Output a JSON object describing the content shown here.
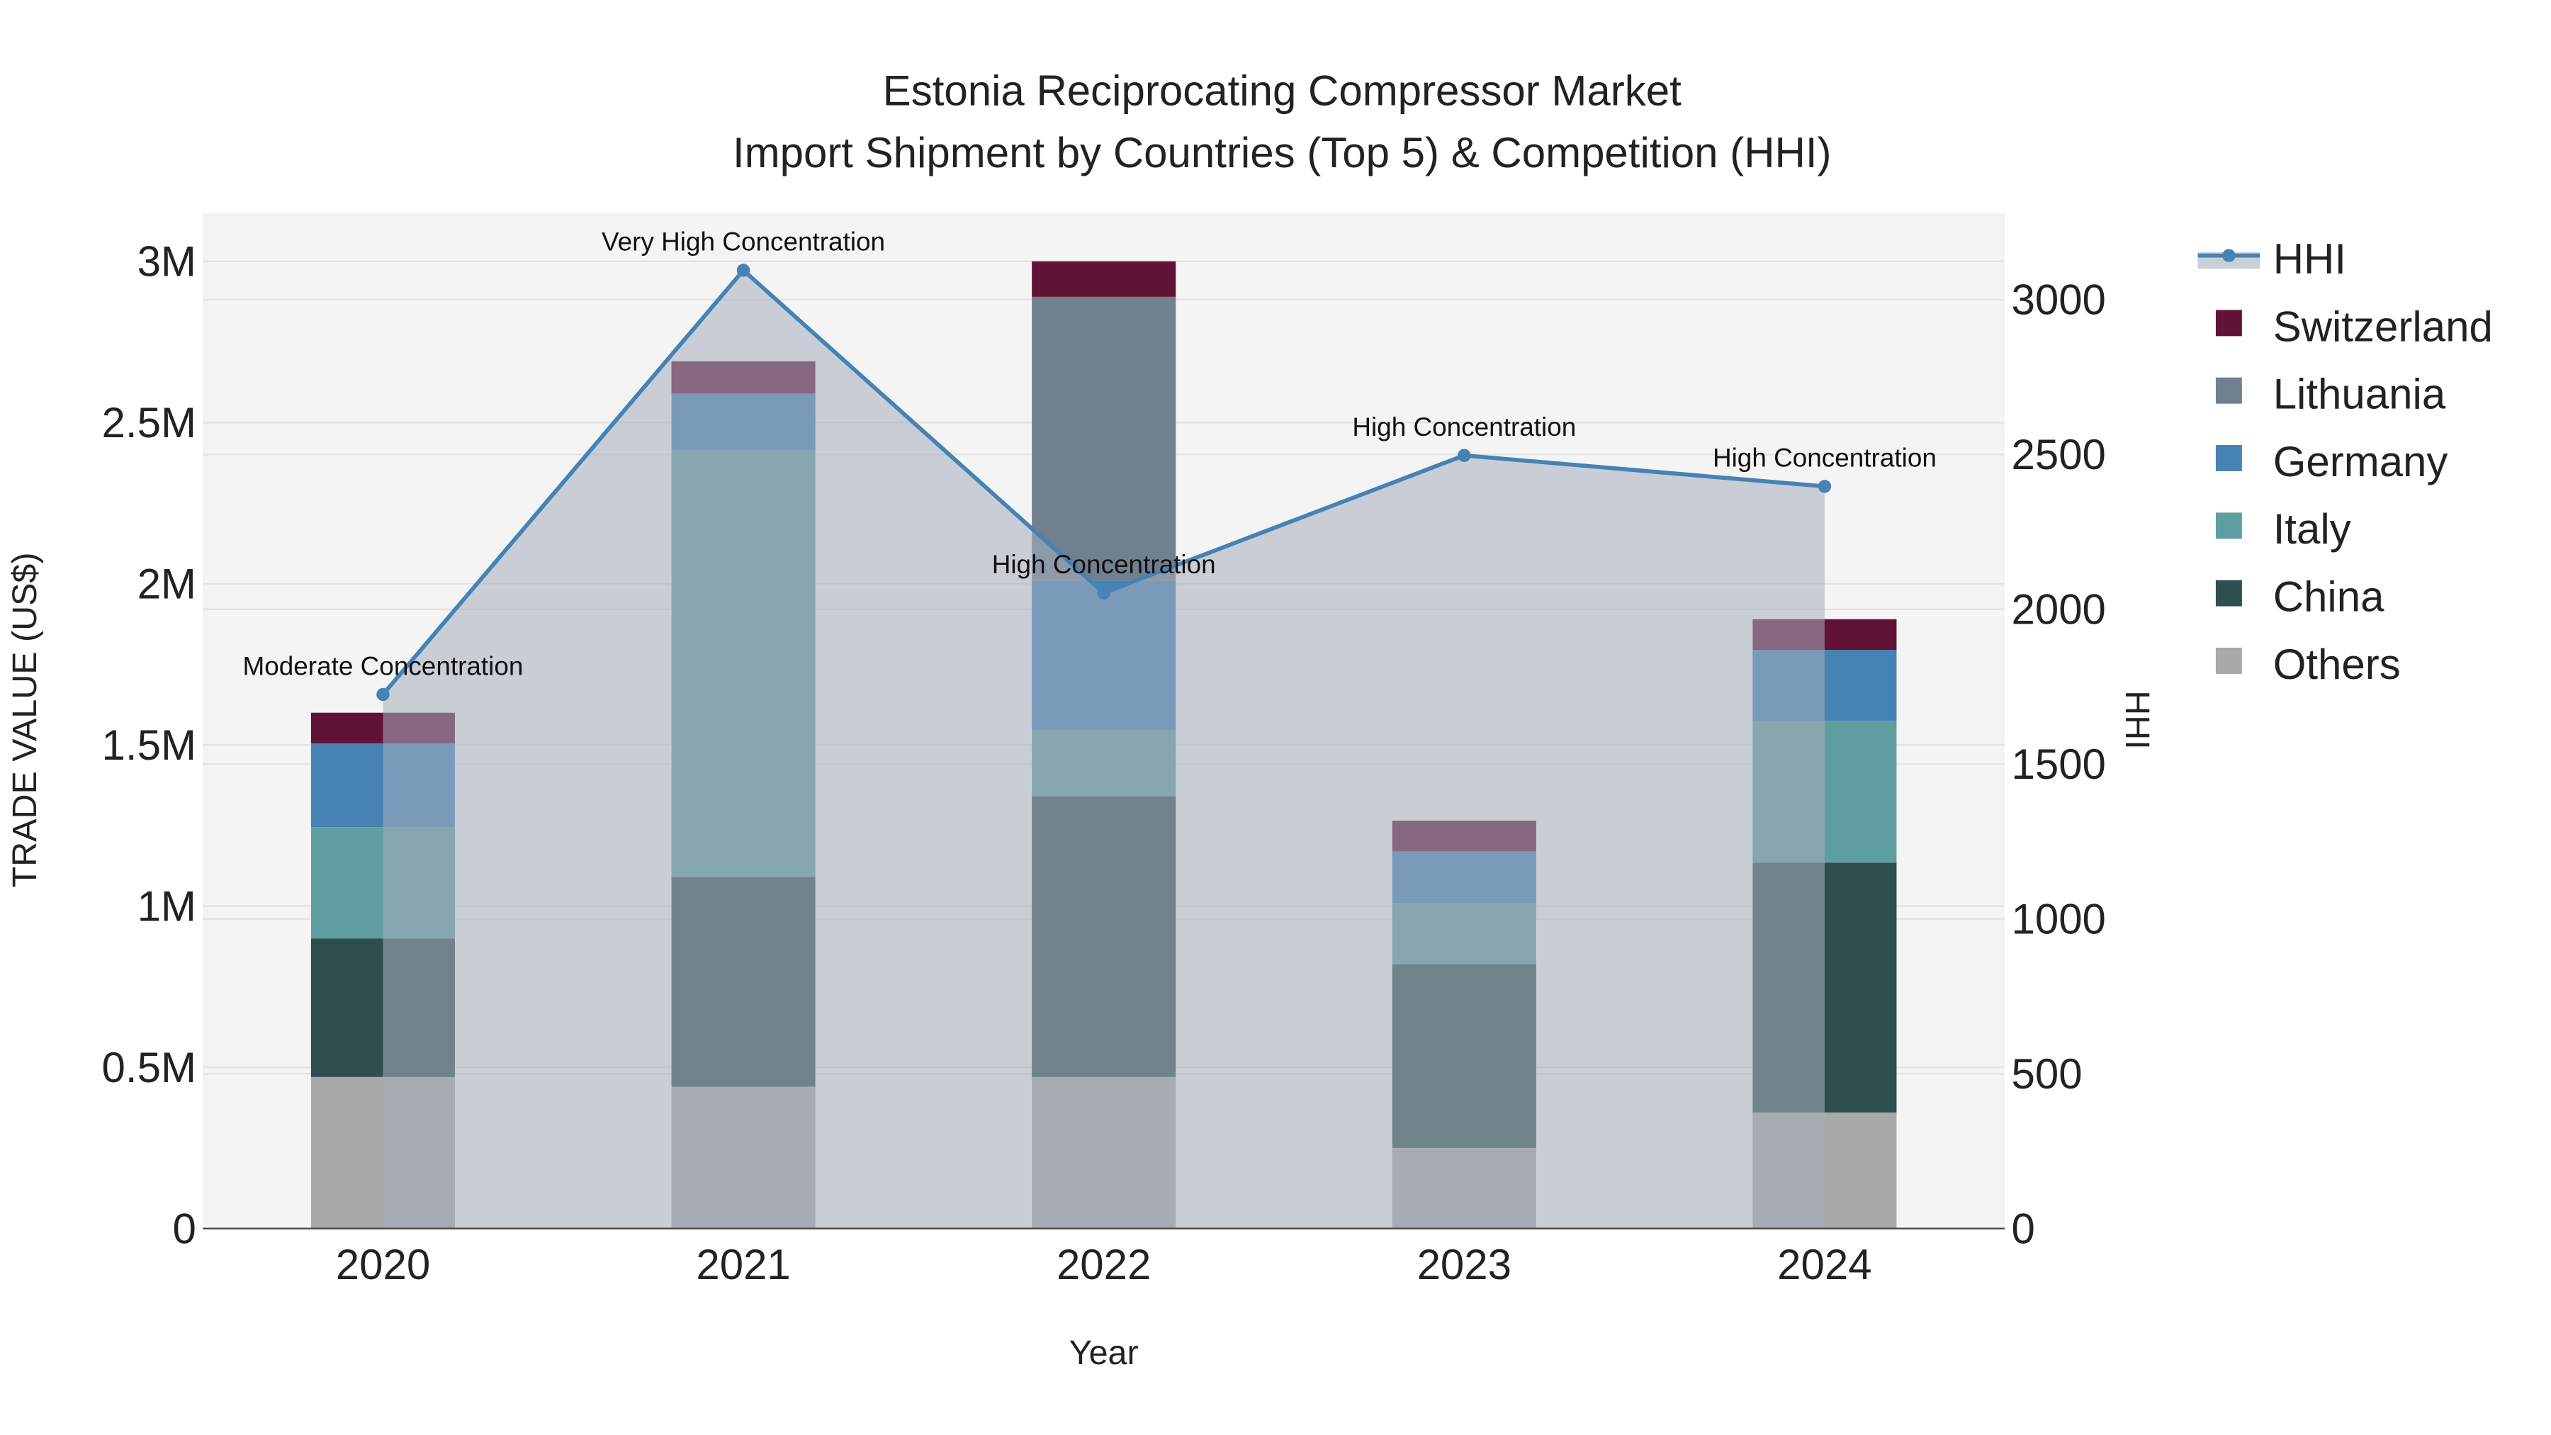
{
  "chart_data": {
    "type": "bar",
    "title_line1": "Estonia Reciprocating Compressor Market",
    "title_line2": "Import Shipment by Countries (Top 5) & Competition (HHI)",
    "xlabel": "Year",
    "ylabel": "TRADE VALUE (US$)",
    "y2label": "HHI",
    "categories": [
      "2020",
      "2021",
      "2022",
      "2023",
      "2024"
    ],
    "ylim": [
      0,
      3150000
    ],
    "y2lim": [
      0,
      3280
    ],
    "yticks": [
      0,
      500000,
      1000000,
      1500000,
      2000000,
      2500000,
      3000000
    ],
    "ytick_labels": [
      "0",
      "0.5M",
      "1M",
      "1.5M",
      "2M",
      "2.5M",
      "3M"
    ],
    "y2ticks": [
      0,
      500,
      1000,
      1500,
      2000,
      2500,
      3000
    ],
    "y2tick_labels": [
      "0",
      "500",
      "1000",
      "1500",
      "2000",
      "2500",
      "3000"
    ],
    "series": [
      {
        "name": "Others",
        "color": "#a9a9a9",
        "values": [
          470000,
          440000,
          470000,
          250000,
          360000
        ]
      },
      {
        "name": "China",
        "color": "#2f4f4f",
        "values": [
          430000,
          650000,
          870000,
          570000,
          775000
        ]
      },
      {
        "name": "Italy",
        "color": "#5f9ea0",
        "values": [
          345000,
          1325000,
          205000,
          190000,
          440000
        ]
      },
      {
        "name": "Germany",
        "color": "#4682b4",
        "values": [
          260000,
          175000,
          465000,
          160000,
          220000
        ]
      },
      {
        "name": "Lithuania",
        "color": "#708090",
        "values": [
          0,
          0,
          880000,
          0,
          0
        ]
      },
      {
        "name": "Switzerland",
        "color": "#611335",
        "values": [
          95000,
          100000,
          110000,
          95000,
          95000
        ]
      }
    ],
    "hhi": {
      "name": "HHI",
      "color": "#4682b4",
      "values": [
        1725,
        3095,
        2053,
        2497,
        2397
      ],
      "annotations": [
        "Moderate Concentration",
        "Very High Concentration",
        "High Concentration",
        "High Concentration",
        "High Concentration"
      ]
    },
    "legend_order": [
      "HHI",
      "Switzerland",
      "Lithuania",
      "Germany",
      "Italy",
      "China",
      "Others"
    ],
    "legend_position": "right",
    "grid": true
  }
}
